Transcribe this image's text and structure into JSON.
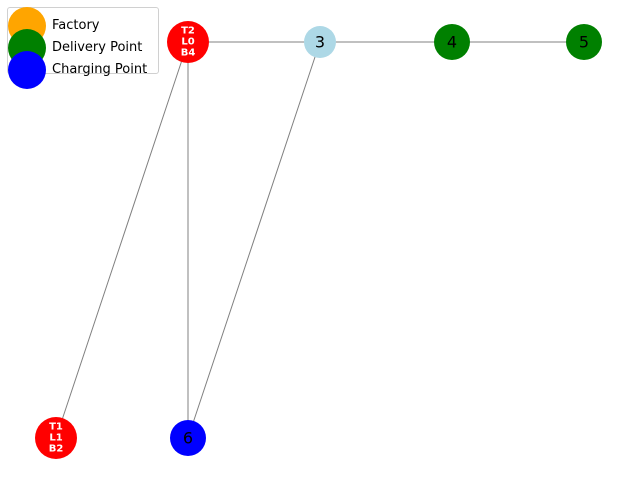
{
  "legend": {
    "items": [
      {
        "label": "Factory",
        "color": "#FFA500"
      },
      {
        "label": "Delivery Point",
        "color": "#008000"
      },
      {
        "label": "Charging Point",
        "color": "#0000FF"
      }
    ]
  },
  "graph": {
    "nodes": [
      {
        "id": "truck-node-a",
        "label_lines": [
          "T2",
          "L0",
          "B4"
        ],
        "color": "#FF0000",
        "text_color": "#FFFFFF",
        "style": "truck"
      },
      {
        "id": "3",
        "label_lines": [
          "3"
        ],
        "color": "#ADD8E6",
        "text_color": "#000000",
        "style": "plain"
      },
      {
        "id": "4",
        "label_lines": [
          "4"
        ],
        "color": "#008000",
        "text_color": "#000000",
        "style": "plain"
      },
      {
        "id": "5",
        "label_lines": [
          "5"
        ],
        "color": "#008000",
        "text_color": "#000000",
        "style": "plain"
      },
      {
        "id": "truck-node-b",
        "label_lines": [
          "T1",
          "L1",
          "B2"
        ],
        "color": "#FF0000",
        "text_color": "#FFFFFF",
        "style": "truck"
      },
      {
        "id": "6",
        "label_lines": [
          "6"
        ],
        "color": "#0000FF",
        "text_color": "#000000",
        "style": "plain"
      }
    ],
    "edges": [
      {
        "from": "truck-node-a",
        "to": "3"
      },
      {
        "from": "3",
        "to": "4"
      },
      {
        "from": "4",
        "to": "5"
      },
      {
        "from": "truck-node-a",
        "to": "truck-node-b"
      },
      {
        "from": "truck-node-a",
        "to": "6"
      },
      {
        "from": "3",
        "to": "6"
      }
    ],
    "edge_color": "#808080"
  }
}
